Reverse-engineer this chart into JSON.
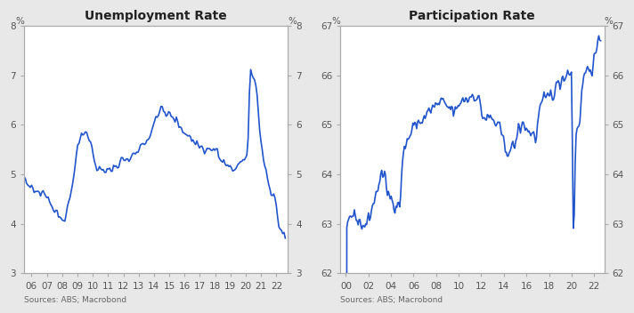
{
  "unemp_title": "Unemployment Rate",
  "part_title": "Participation Rate",
  "source_text": "Sources: ABS; Macrobond",
  "line_color": "#2255cc",
  "line_width": 1.2,
  "unemp_ylim": [
    3,
    8
  ],
  "unemp_yticks": [
    3,
    4,
    5,
    6,
    7,
    8
  ],
  "part_ylim": [
    62,
    67
  ],
  "part_yticks": [
    62,
    63,
    64,
    65,
    66,
    67
  ],
  "unemp_xticks": [
    2006,
    2007,
    2008,
    2009,
    2010,
    2011,
    2012,
    2013,
    2014,
    2015,
    2016,
    2017,
    2018,
    2019,
    2020,
    2021,
    2022
  ],
  "unemp_xticklabels": [
    "06",
    "07",
    "08",
    "09",
    "10",
    "11",
    "12",
    "13",
    "14",
    "15",
    "16",
    "17",
    "18",
    "19",
    "20",
    "21",
    "22"
  ],
  "part_xticks": [
    2000,
    2002,
    2004,
    2006,
    2008,
    2010,
    2012,
    2014,
    2016,
    2018,
    2020,
    2022
  ],
  "part_xticklabels": [
    "00",
    "02",
    "04",
    "06",
    "08",
    "10",
    "12",
    "14",
    "16",
    "18",
    "20",
    "22"
  ],
  "bg_color": "#e8e8e8",
  "panel_bg": "#ffffff",
  "spine_color": "#aaaaaa",
  "tick_color": "#555555",
  "title_fontsize": 10,
  "tick_fontsize": 7.5,
  "source_fontsize": 6.5
}
